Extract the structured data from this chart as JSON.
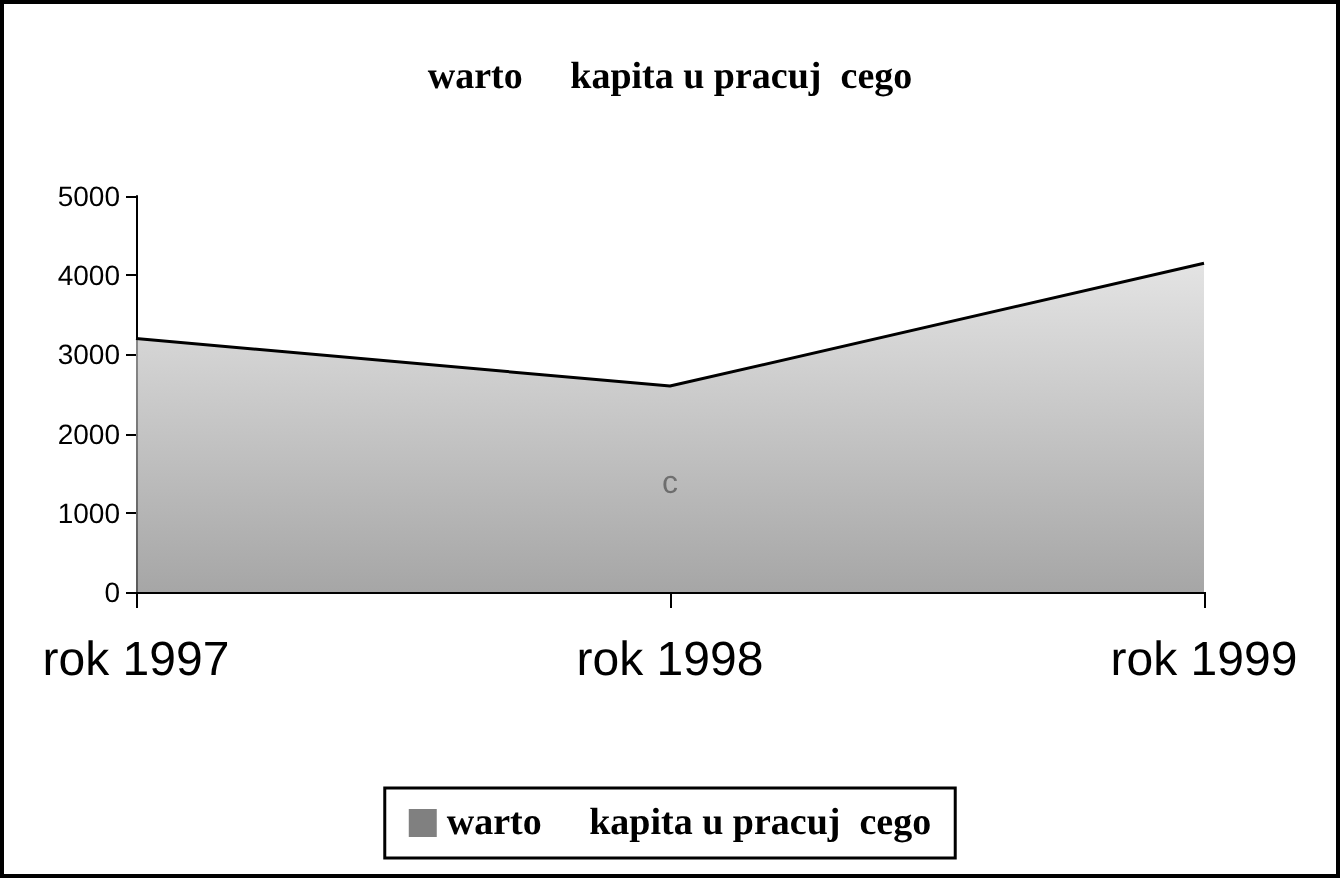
{
  "chart_data": {
    "type": "area",
    "title": "warto     kapita u pracuj  cego",
    "categories": [
      "rok 1997",
      "rok 1998",
      "rok 1999"
    ],
    "series": [
      {
        "name": "warto     kapita u pracuj  cego",
        "color": "#808080",
        "values": [
          3200,
          2600,
          4150
        ]
      }
    ],
    "ylim": [
      0,
      5000
    ],
    "yticks": [
      0,
      1000,
      2000,
      3000,
      4000,
      5000
    ],
    "grid": false,
    "legend": "bottom",
    "marker": "none",
    "annotations": [
      "c"
    ]
  }
}
